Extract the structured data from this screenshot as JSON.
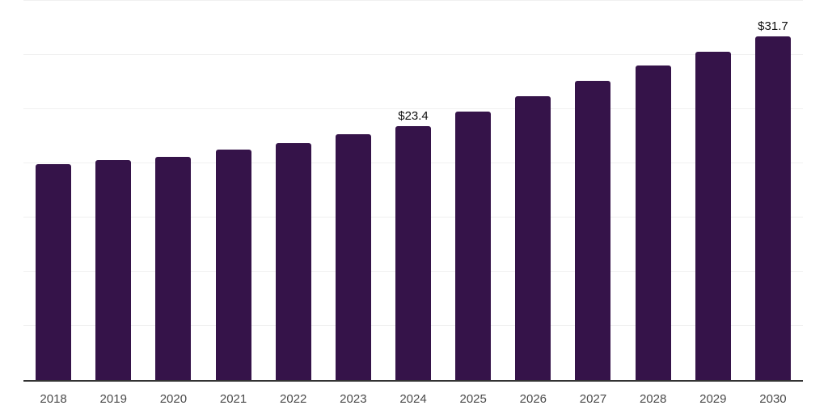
{
  "chart_data": {
    "type": "bar",
    "title": "",
    "categories": [
      "2018",
      "2019",
      "2020",
      "2021",
      "2022",
      "2023",
      "2024",
      "2025",
      "2026",
      "2027",
      "2028",
      "2029",
      "2030"
    ],
    "values": [
      19.9,
      20.3,
      20.6,
      21.3,
      21.9,
      22.7,
      23.4,
      24.8,
      26.2,
      27.6,
      29.0,
      30.3,
      31.7
    ],
    "bar_labels": [
      "",
      "",
      "",
      "",
      "",
      "",
      "$23.4",
      "",
      "",
      "",
      "",
      "",
      "$31.7"
    ],
    "xlabel": "",
    "ylabel": "",
    "ylim": [
      0,
      35
    ],
    "gridline_step": 5,
    "grid": true,
    "legend": false,
    "y_axis_labels_visible": false,
    "colors": {
      "bar": "#351349",
      "gridline": "#f0f0f0",
      "axis_line": "#333333",
      "tick_label": "#4a4a4a",
      "data_label": "#111111",
      "background": "#ffffff"
    }
  }
}
